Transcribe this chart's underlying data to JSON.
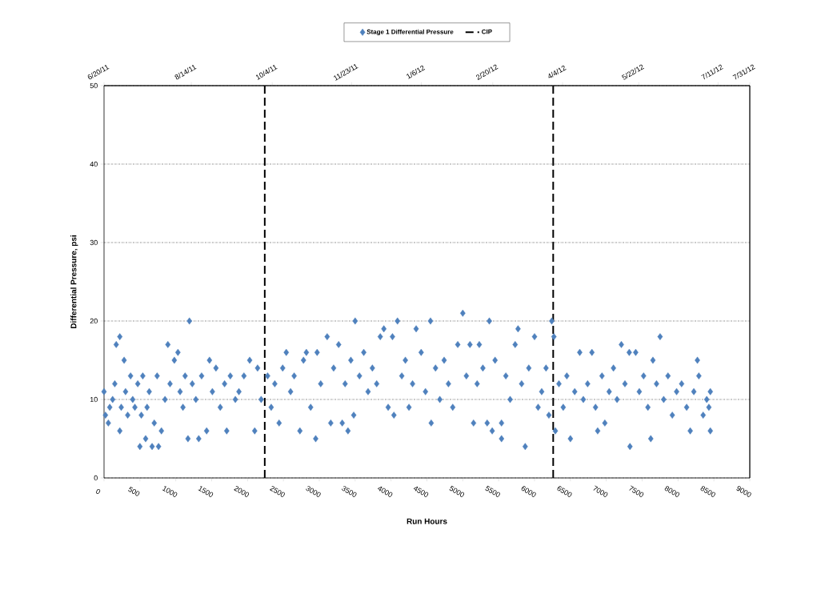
{
  "chart_data": {
    "type": "scatter",
    "xlabel": "Run Hours",
    "ylabel": "Differential Pressure, psi",
    "xlim": [
      0,
      9000
    ],
    "ylim": [
      0,
      50
    ],
    "xticks": [
      0,
      500,
      1000,
      1500,
      2000,
      2500,
      3000,
      3500,
      4000,
      4500,
      5000,
      5500,
      6000,
      6500,
      7000,
      7500,
      8000,
      8500,
      9000
    ],
    "yticks": [
      0,
      10,
      20,
      30,
      40,
      50
    ],
    "x2lim": [
      "2011-06-20",
      "2012-07-31"
    ],
    "x2ticks": [
      {
        "value": "2011-06-20",
        "label": "6/20/11"
      },
      {
        "value": "2011-08-14",
        "label": "8/14/11"
      },
      {
        "value": "2011-10-04",
        "label": "10/4/11"
      },
      {
        "value": "2011-11-23",
        "label": "11/23/11"
      },
      {
        "value": "2012-01-06",
        "label": "1/6/12"
      },
      {
        "value": "2012-02-20",
        "label": "2/20/12"
      },
      {
        "value": "2012-04-04",
        "label": "4/4/12"
      },
      {
        "value": "2012-05-22",
        "label": "5/22/12"
      },
      {
        "value": "2012-07-11",
        "label": "7/11/12"
      },
      {
        "value": "2012-07-31",
        "label": "7/31/12"
      }
    ],
    "grid": "y",
    "legend": "top",
    "marker": "diamond",
    "ref_lines": [
      {
        "axis": "x",
        "value": 2240,
        "label": "CIP",
        "color": "#000000",
        "line_style": "dashed"
      },
      {
        "axis": "x",
        "value": 6260,
        "color": "#000000",
        "line_style": "dashed"
      }
    ],
    "series": [
      {
        "name": "Stage 1 Differential Pressure",
        "color": "#4f81bd",
        "x": [
          0,
          20,
          60,
          80,
          120,
          150,
          170,
          220,
          220,
          240,
          280,
          300,
          330,
          370,
          400,
          430,
          470,
          500,
          520,
          540,
          580,
          600,
          630,
          670,
          700,
          740,
          760,
          800,
          850,
          890,
          920,
          980,
          1030,
          1060,
          1100,
          1130,
          1170,
          1190,
          1230,
          1280,
          1320,
          1360,
          1430,
          1470,
          1510,
          1560,
          1620,
          1680,
          1710,
          1760,
          1830,
          1880,
          1950,
          2030,
          2100,
          2140,
          2190,
          2280,
          2330,
          2380,
          2440,
          2490,
          2540,
          2600,
          2650,
          2730,
          2780,
          2820,
          2880,
          2950,
          2970,
          3020,
          3110,
          3160,
          3200,
          3270,
          3320,
          3360,
          3400,
          3440,
          3480,
          3500,
          3560,
          3620,
          3680,
          3740,
          3800,
          3850,
          3900,
          3960,
          4020,
          4040,
          4090,
          4150,
          4200,
          4250,
          4300,
          4350,
          4420,
          4480,
          4550,
          4560,
          4620,
          4680,
          4740,
          4800,
          4860,
          4930,
          5000,
          5050,
          5100,
          5150,
          5200,
          5230,
          5280,
          5340,
          5370,
          5410,
          5450,
          5540,
          5540,
          5600,
          5660,
          5730,
          5770,
          5820,
          5870,
          5920,
          6000,
          6050,
          6100,
          6160,
          6200,
          6240,
          6270,
          6290,
          6340,
          6400,
          6450,
          6500,
          6560,
          6630,
          6680,
          6740,
          6800,
          6850,
          6880,
          6940,
          6980,
          7040,
          7100,
          7150,
          7210,
          7260,
          7320,
          7330,
          7410,
          7460,
          7520,
          7580,
          7620,
          7650,
          7700,
          7750,
          7800,
          7860,
          7920,
          7980,
          8050,
          8120,
          8170,
          8220,
          8270,
          8290,
          8350,
          8400,
          8430,
          8450,
          8450
        ],
        "values": [
          11,
          8,
          7,
          9,
          10,
          12,
          17,
          18,
          6,
          9,
          15,
          11,
          8,
          13,
          10,
          9,
          12,
          4,
          8,
          13,
          5,
          9,
          11,
          4,
          7,
          13,
          4,
          6,
          10,
          17,
          12,
          15,
          16,
          11,
          9,
          13,
          5,
          20,
          12,
          10,
          5,
          13,
          6,
          15,
          11,
          14,
          9,
          12,
          6,
          13,
          10,
          11,
          13,
          15,
          6,
          14,
          10,
          13,
          9,
          12,
          7,
          14,
          16,
          11,
          13,
          6,
          15,
          16,
          9,
          5,
          16,
          12,
          18,
          7,
          14,
          17,
          7,
          12,
          6,
          15,
          8,
          20,
          13,
          16,
          11,
          14,
          12,
          18,
          19,
          9,
          18,
          8,
          20,
          13,
          15,
          9,
          12,
          19,
          16,
          11,
          20,
          7,
          14,
          10,
          15,
          12,
          9,
          17,
          21,
          13,
          17,
          7,
          12,
          17,
          14,
          7,
          20,
          6,
          15,
          5,
          7,
          13,
          10,
          17,
          19,
          12,
          4,
          14,
          18,
          9,
          11,
          14,
          8,
          20,
          18,
          6,
          12,
          9,
          13,
          5,
          11,
          16,
          10,
          12,
          16,
          9,
          6,
          13,
          7,
          11,
          14,
          10,
          17,
          12,
          16,
          4,
          16,
          11,
          13,
          9,
          5,
          15,
          12,
          18,
          10,
          13,
          8,
          11,
          12,
          9,
          6,
          11,
          15,
          13,
          8,
          10,
          9,
          11,
          6
        ]
      }
    ]
  }
}
